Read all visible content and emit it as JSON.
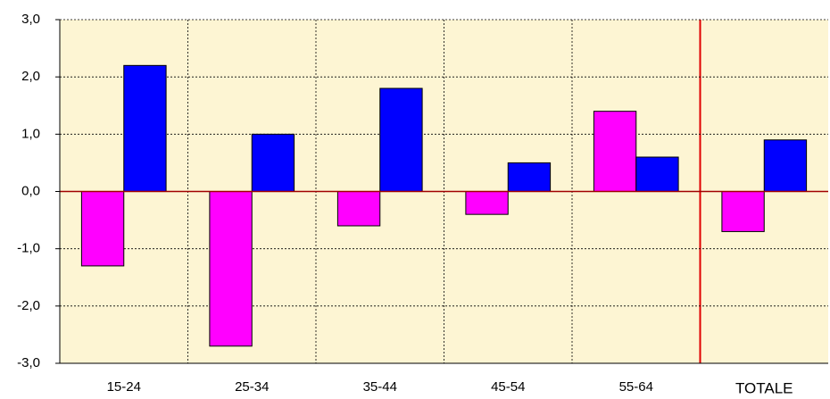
{
  "chart_data": {
    "type": "bar",
    "categories": [
      "15-24",
      "25-34",
      "35-44",
      "45-54",
      "55-64",
      "TOTALE"
    ],
    "series": [
      {
        "color": "#ff00ff",
        "values": [
          -1.3,
          -2.7,
          -0.6,
          -0.4,
          1.4,
          -0.7
        ]
      },
      {
        "color": "#0000ff",
        "values": [
          2.2,
          1.0,
          1.8,
          0.5,
          0.6,
          0.9
        ]
      }
    ],
    "ylim": [
      -3,
      3
    ],
    "yticks": [
      {
        "value": -3,
        "label": "-3,0"
      },
      {
        "value": -2,
        "label": "-2,0"
      },
      {
        "value": -1,
        "label": "-1,0"
      },
      {
        "value": 0,
        "label": "0,0"
      },
      {
        "value": 1,
        "label": "1,0"
      },
      {
        "value": 2,
        "label": "2,0"
      },
      {
        "value": 3,
        "label": "3,0"
      }
    ],
    "grid": true
  }
}
